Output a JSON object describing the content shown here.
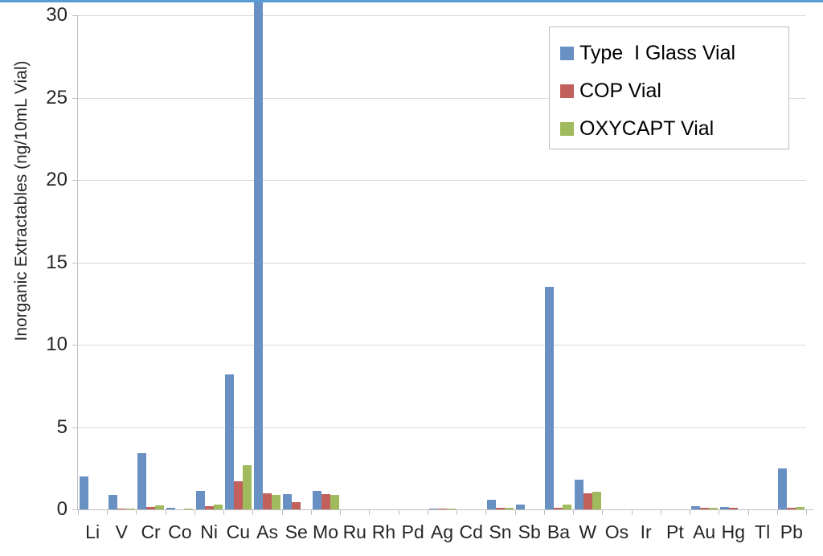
{
  "top_border_color": "#5b9bd5",
  "chart_data": {
    "type": "bar",
    "title": "",
    "xlabel": "",
    "ylabel": "Inorganic Extractables (ng/10mL Vial)",
    "ylim": [
      0,
      30
    ],
    "yticks": [
      0,
      5,
      10,
      15,
      20,
      25,
      30
    ],
    "grid": true,
    "legend_position": "top-right-inside",
    "categories": [
      "Li",
      "V",
      "Cr",
      "Co",
      "Ni",
      "Cu",
      "As",
      "Se",
      "Mo",
      "Ru",
      "Rh",
      "Pd",
      "Ag",
      "Cd",
      "Sn",
      "Sb",
      "Ba",
      "W",
      "Os",
      "Ir",
      "Pt",
      "Au",
      "Hg",
      "Tl",
      "Pb"
    ],
    "series": [
      {
        "name": "Type  I Glass Vial",
        "color": "#6990c3",
        "values": [
          2.0,
          0.9,
          3.4,
          0.1,
          1.1,
          8.2,
          31,
          0.95,
          1.1,
          0,
          0,
          0,
          0.05,
          0,
          0.6,
          0.3,
          13.5,
          1.8,
          0,
          0,
          0,
          0.2,
          0.15,
          0,
          2.5
        ]
      },
      {
        "name": "COP Vial",
        "color": "#c2605c",
        "values": [
          0,
          0.05,
          0.15,
          0,
          0.2,
          1.7,
          1.0,
          0.45,
          0.95,
          0,
          0,
          0,
          0.05,
          0,
          0.1,
          0,
          0.1,
          1.0,
          0,
          0,
          0,
          0.1,
          0.1,
          0,
          0.1
        ]
      },
      {
        "name": "OXYCAPT Vial",
        "color": "#a0ba5e",
        "values": [
          0,
          0.05,
          0.25,
          0.05,
          0.3,
          2.7,
          0.9,
          0,
          0.9,
          0,
          0,
          0,
          0.05,
          0,
          0.1,
          0,
          0.3,
          1.05,
          0,
          0,
          0,
          0.1,
          0,
          0,
          0.15
        ]
      }
    ],
    "note": "Type I Glass Vial bar for As exceeds the axis maximum and is clipped at the top edge of the image"
  }
}
